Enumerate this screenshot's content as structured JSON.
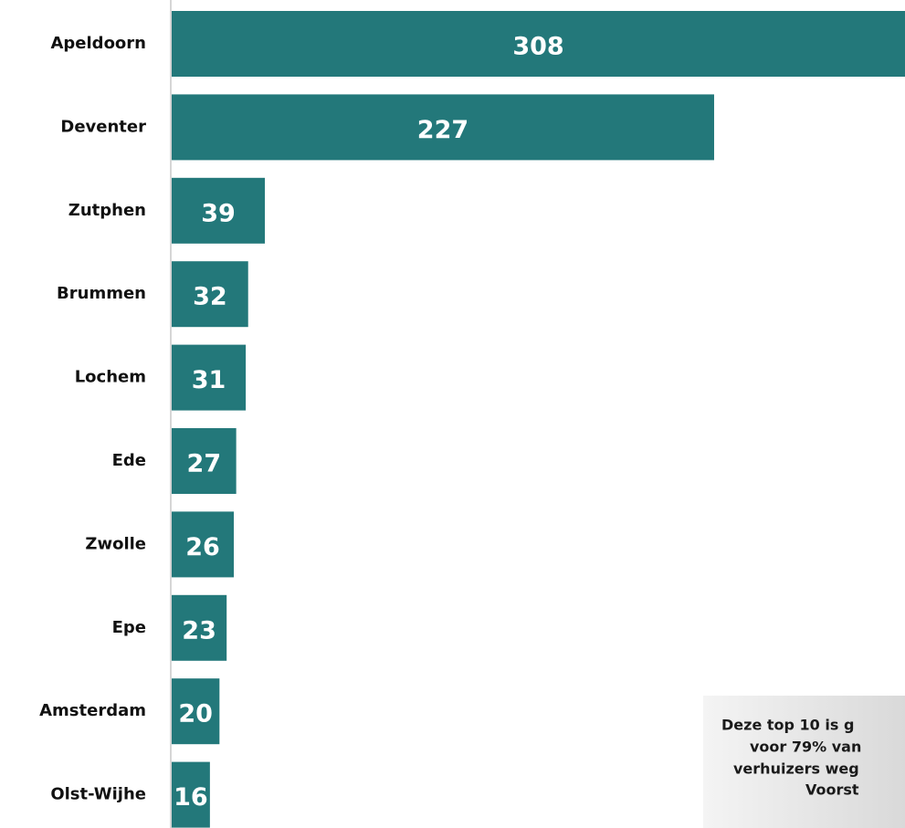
{
  "chart_data": {
    "type": "bar",
    "orientation": "horizontal",
    "categories": [
      "Apeldoorn",
      "Deventer",
      "Zutphen",
      "Brummen",
      "Lochem",
      "Ede",
      "Zwolle",
      "Epe",
      "Amsterdam",
      "Olst-Wijhe"
    ],
    "values": [
      308,
      227,
      39,
      32,
      31,
      27,
      26,
      23,
      20,
      16
    ],
    "color": "#23787a",
    "xlim": [
      0,
      300
    ],
    "annotation": [
      "Deze top 10 is g",
      "voor 79% van",
      "verhuizers weg",
      "Voorst"
    ]
  }
}
